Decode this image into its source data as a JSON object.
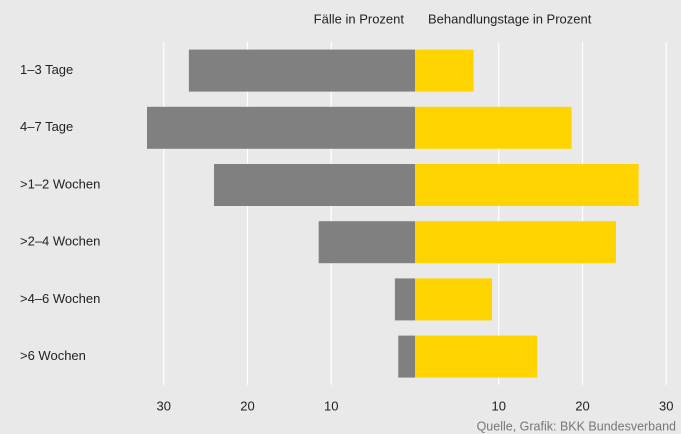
{
  "chart_data": {
    "type": "butterfly",
    "categories": [
      "1–3 Tage",
      "4–7 Tage",
      ">1–2 Wochen",
      ">2–4 Wochen",
      ">4–6 Wochen",
      ">6 Wochen"
    ],
    "series": [
      {
        "name": "Fälle in Prozent",
        "color": "#808080",
        "side": "left",
        "values": [
          27,
          32,
          24,
          11.5,
          2.4,
          2
        ]
      },
      {
        "name": "Behandlungstage in Prozent",
        "color": "#ffd400",
        "side": "right",
        "values": [
          7,
          18.7,
          26.7,
          24,
          9.2,
          14.6
        ]
      }
    ],
    "xlim": [
      0,
      32
    ],
    "xticks": [
      10,
      20,
      30
    ],
    "grid": true,
    "source": "Quelle, Grafik: BKK Bundesverband"
  }
}
